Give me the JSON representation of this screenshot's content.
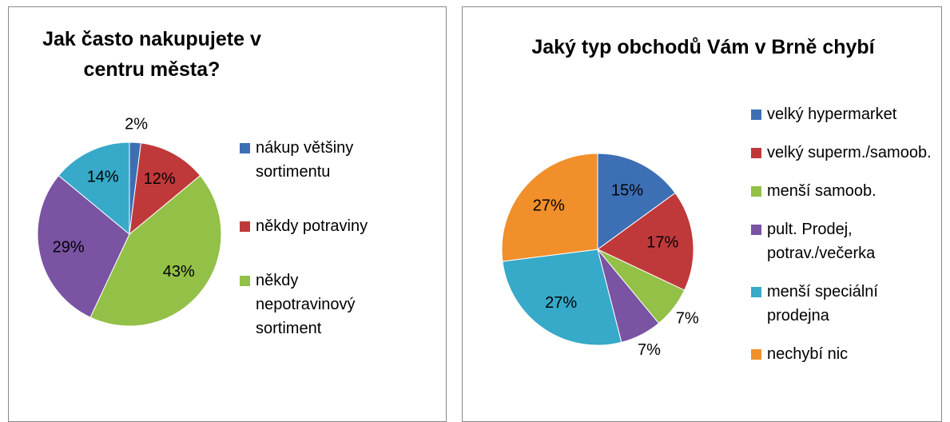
{
  "chart_data": [
    {
      "type": "pie",
      "title": "Jak často nakupujete v centru města?",
      "categories": [
        "nákup většiny sortimentu",
        "někdy potraviny",
        "někdy nepotravinový sortiment",
        null,
        null
      ],
      "values": [
        2,
        12,
        43,
        29,
        14
      ],
      "value_labels": [
        "2%",
        "12%",
        "43%",
        "29%",
        "14%"
      ],
      "colors": [
        "#3d6fb5",
        "#c0393a",
        "#93c047",
        "#7a53a3",
        "#37a9c9"
      ]
    },
    {
      "type": "pie",
      "title": "Jaký typ obchodů Vám v Brně chybí",
      "categories": [
        "velký hypermarket",
        "velký superm./samoob.",
        "menší samoob.",
        "pult. Prodej, potrav./večerka",
        "menší speciální prodejna",
        "nechybí nic"
      ],
      "values": [
        15,
        17,
        7,
        7,
        27,
        27
      ],
      "value_labels": [
        "15%",
        "17%",
        "7%",
        "7%",
        "27%",
        "27%"
      ],
      "colors": [
        "#3d6fb5",
        "#c0393a",
        "#93c047",
        "#7a53a3",
        "#37a9c9",
        "#f18f2b"
      ]
    }
  ]
}
